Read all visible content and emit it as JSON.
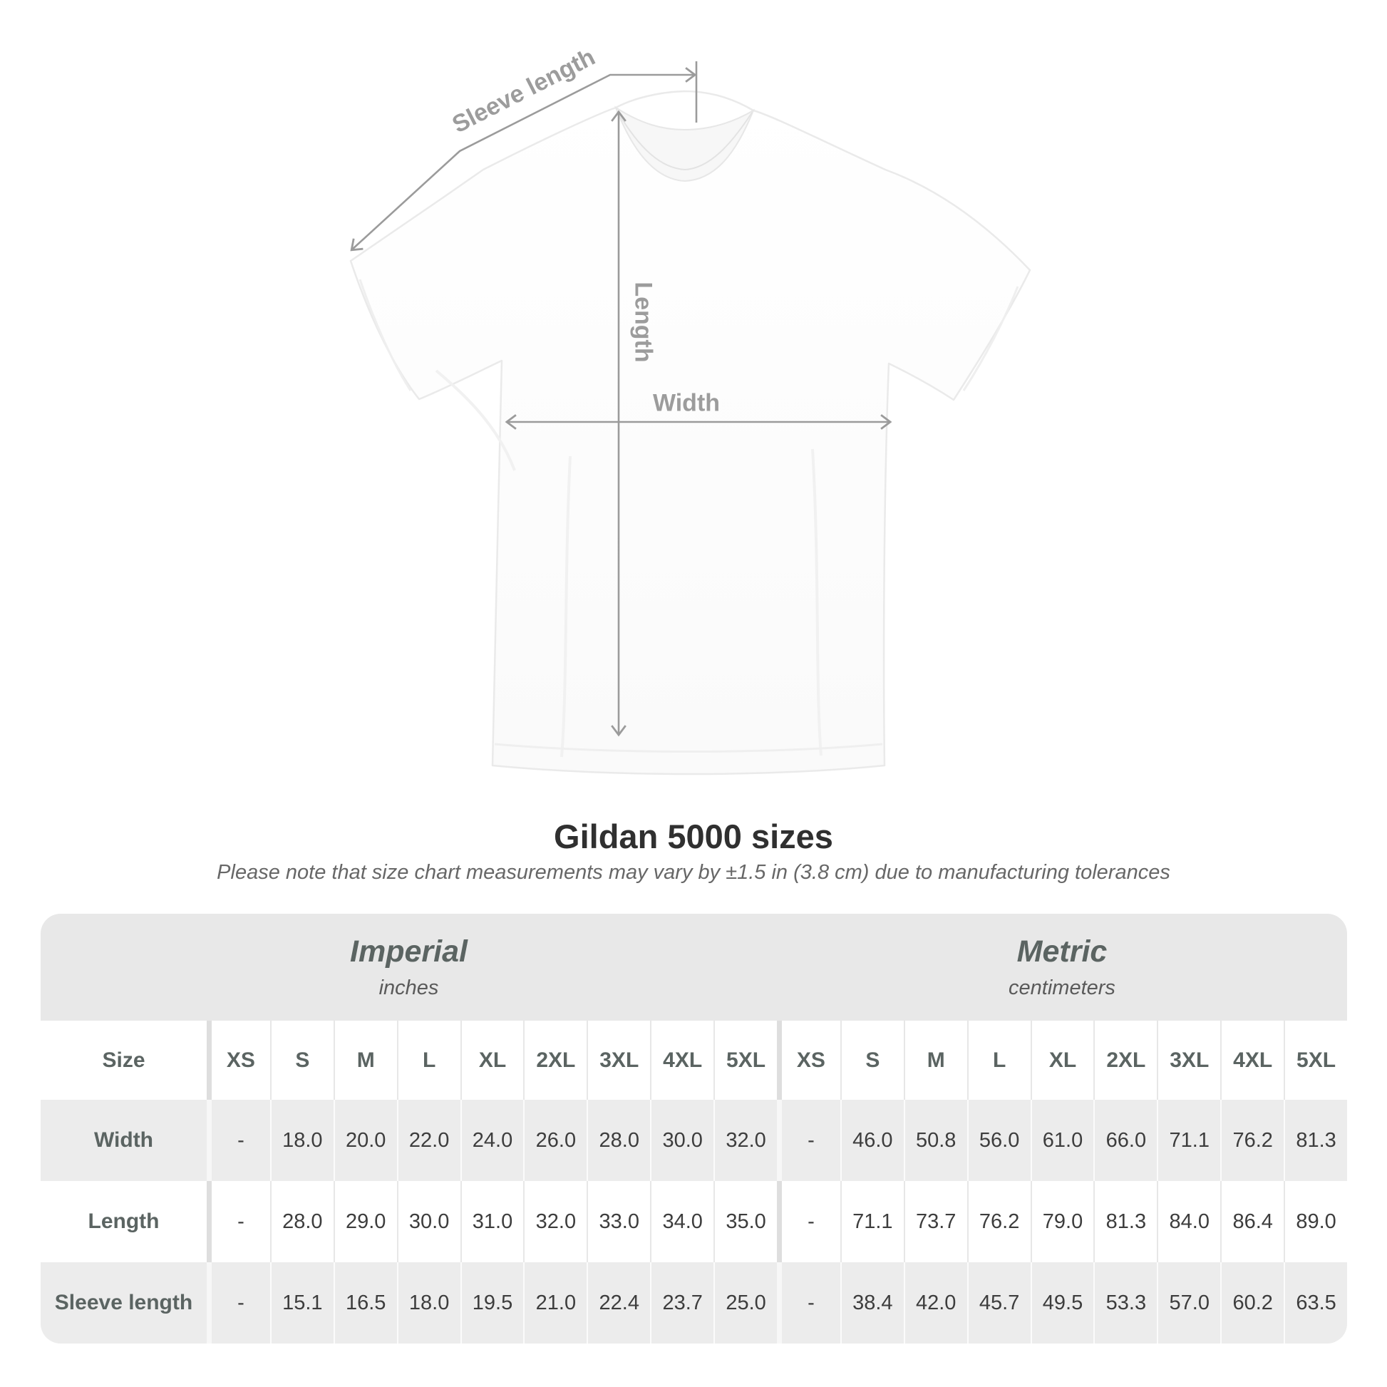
{
  "diagram": {
    "labels": {
      "sleeve_length": "Sleeve length",
      "length": "Length",
      "width": "Width"
    }
  },
  "title": "Gildan 5000 sizes",
  "subtitle": "Please note that size chart measurements may vary by ±1.5 in (3.8 cm) due to manufacturing tolerances",
  "table": {
    "size_header": "Size",
    "unit_groups": [
      {
        "name": "Imperial",
        "unit": "inches"
      },
      {
        "name": "Metric",
        "unit": "centimeters"
      }
    ],
    "sizes": [
      "XS",
      "S",
      "M",
      "L",
      "XL",
      "2XL",
      "3XL",
      "4XL",
      "5XL"
    ],
    "rows": [
      {
        "label": "Width",
        "imperial": [
          "-",
          "18.0",
          "20.0",
          "22.0",
          "24.0",
          "26.0",
          "28.0",
          "30.0",
          "32.0"
        ],
        "metric": [
          "-",
          "46.0",
          "50.8",
          "56.0",
          "61.0",
          "66.0",
          "71.1",
          "76.2",
          "81.3"
        ]
      },
      {
        "label": "Length",
        "imperial": [
          "-",
          "28.0",
          "29.0",
          "30.0",
          "31.0",
          "32.0",
          "33.0",
          "34.0",
          "35.0"
        ],
        "metric": [
          "-",
          "71.1",
          "73.7",
          "76.2",
          "79.0",
          "81.3",
          "84.0",
          "86.4",
          "89.0"
        ]
      },
      {
        "label": "Sleeve length",
        "imperial": [
          "-",
          "15.1",
          "16.5",
          "18.0",
          "19.5",
          "21.0",
          "22.4",
          "23.7",
          "25.0"
        ],
        "metric": [
          "-",
          "38.4",
          "42.0",
          "45.7",
          "49.5",
          "53.3",
          "57.0",
          "60.2",
          "63.5"
        ]
      }
    ]
  },
  "chart_data": {
    "type": "table",
    "title": "Gildan 5000 sizes",
    "note": "Size chart measurements may vary by ±1.5 in (3.8 cm) due to manufacturing tolerances",
    "sizes": [
      "XS",
      "S",
      "M",
      "L",
      "XL",
      "2XL",
      "3XL",
      "4XL",
      "5XL"
    ],
    "measurements": [
      {
        "name": "Width",
        "imperial_in": [
          null,
          18.0,
          20.0,
          22.0,
          24.0,
          26.0,
          28.0,
          30.0,
          32.0
        ],
        "metric_cm": [
          null,
          46.0,
          50.8,
          56.0,
          61.0,
          66.0,
          71.1,
          76.2,
          81.3
        ]
      },
      {
        "name": "Length",
        "imperial_in": [
          null,
          28.0,
          29.0,
          30.0,
          31.0,
          32.0,
          33.0,
          34.0,
          35.0
        ],
        "metric_cm": [
          null,
          71.1,
          73.7,
          76.2,
          79.0,
          81.3,
          84.0,
          86.4,
          89.0
        ]
      },
      {
        "name": "Sleeve length",
        "imperial_in": [
          null,
          15.1,
          16.5,
          18.0,
          19.5,
          21.0,
          22.4,
          23.7,
          25.0
        ],
        "metric_cm": [
          null,
          38.4,
          42.0,
          45.7,
          49.5,
          53.3,
          57.0,
          60.2,
          63.5
        ]
      }
    ]
  },
  "colors": {
    "band_bg": "#e8e8e8",
    "row_alt_bg": "#ececec",
    "header_text": "#5b6462",
    "value_text": "#3d3d3d",
    "annotation_gray": "#9c9c9c",
    "title_text": "#303030"
  }
}
